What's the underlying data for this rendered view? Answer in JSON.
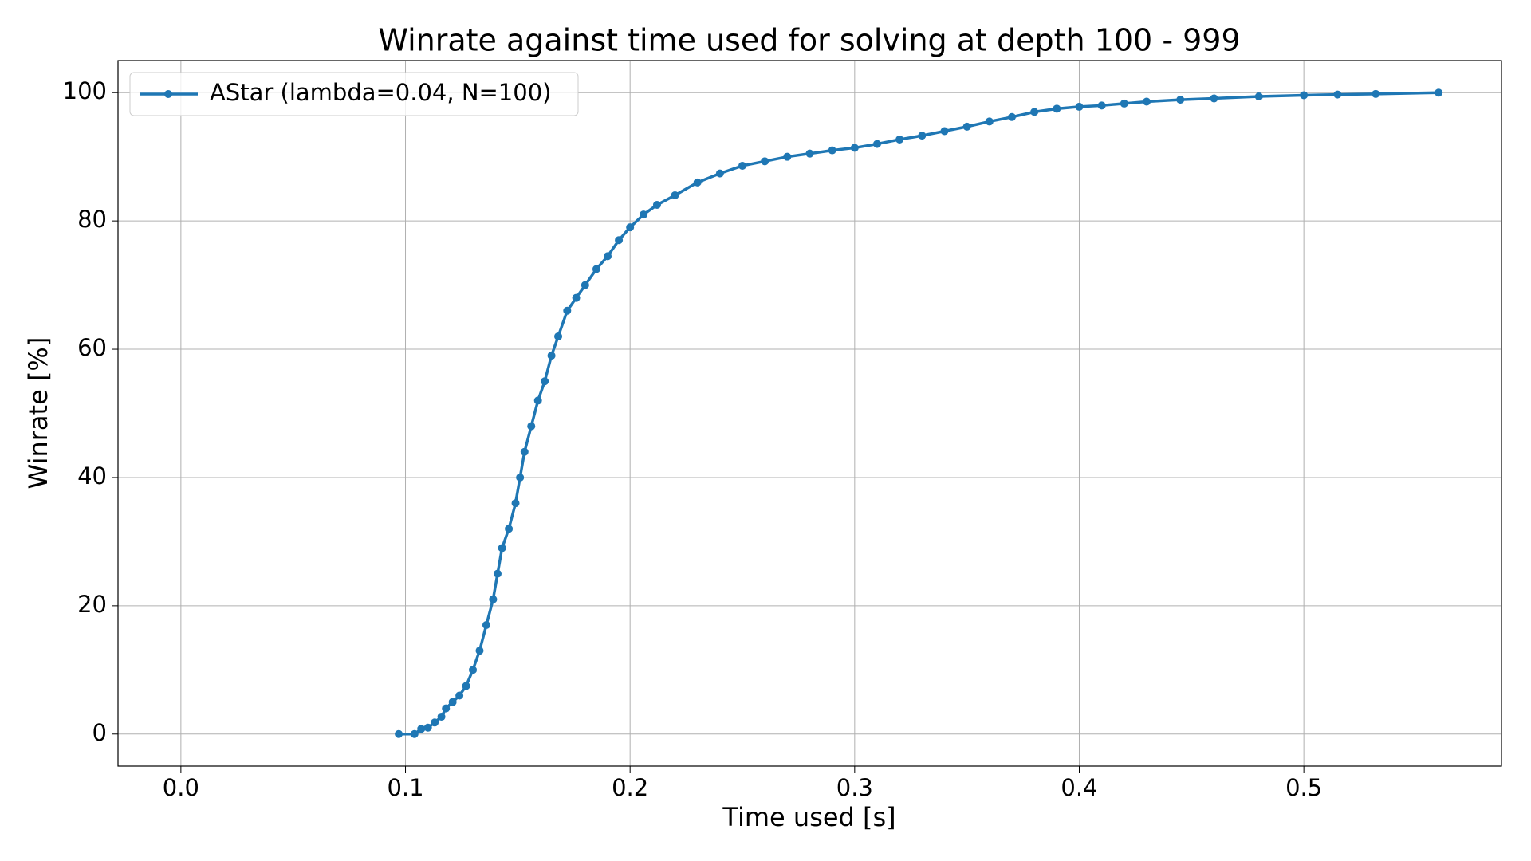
{
  "chart_data": {
    "type": "line",
    "title": "Winrate against time used for solving at depth 100 - 999",
    "x_label": "Time used [s]",
    "y_label": "Winrate [%]",
    "x": [
      0.097,
      0.104,
      0.107,
      0.11,
      0.113,
      0.116,
      0.118,
      0.121,
      0.124,
      0.127,
      0.13,
      0.133,
      0.136,
      0.139,
      0.141,
      0.143,
      0.146,
      0.149,
      0.151,
      0.153,
      0.156,
      0.159,
      0.162,
      0.165,
      0.168,
      0.172,
      0.176,
      0.18,
      0.185,
      0.19,
      0.195,
      0.2,
      0.206,
      0.212,
      0.22,
      0.23,
      0.24,
      0.25,
      0.26,
      0.27,
      0.28,
      0.29,
      0.3,
      0.31,
      0.32,
      0.33,
      0.34,
      0.35,
      0.36,
      0.37,
      0.38,
      0.39,
      0.4,
      0.41,
      0.42,
      0.43,
      0.445,
      0.46,
      0.48,
      0.5,
      0.515,
      0.532,
      0.56
    ],
    "series": [
      {
        "name": "AStar (lambda=0.04, N=100)",
        "color": "#1f77b4",
        "values": [
          0,
          0,
          0.8,
          1,
          1.8,
          2.7,
          4,
          5,
          6,
          7.5,
          10,
          13,
          17,
          21,
          25,
          29,
          32,
          36,
          40,
          44,
          48,
          52,
          55,
          59,
          62,
          66,
          68,
          70,
          72.5,
          74.5,
          77,
          79,
          81,
          82.5,
          84,
          86,
          87.4,
          88.6,
          89.3,
          90,
          90.5,
          91,
          91.4,
          92,
          92.7,
          93.3,
          94,
          94.7,
          95.5,
          96.2,
          97,
          97.5,
          97.8,
          98,
          98.3,
          98.6,
          98.9,
          99.1,
          99.4,
          99.6,
          99.7,
          99.8,
          100
        ]
      }
    ],
    "xlim": [
      -0.028,
      0.588
    ],
    "ylim": [
      -5,
      105
    ],
    "xticks": [
      {
        "value": 0,
        "label": "0.0"
      },
      0.1,
      0.2,
      0.3,
      0.4,
      0.5
    ],
    "yticks": [
      0,
      20,
      40,
      60,
      80,
      100
    ],
    "grid": true,
    "legend": "upper left"
  }
}
